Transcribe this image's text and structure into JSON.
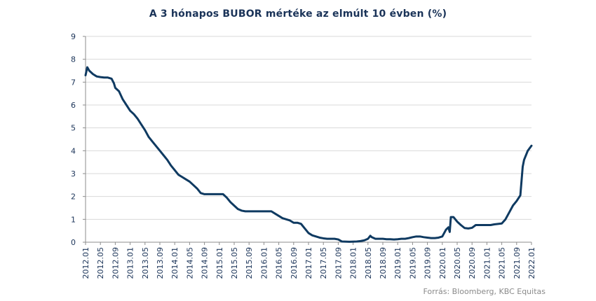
{
  "title": "A 3 hónapos BUBOR mértéke az elmúlt  10 évben (%)",
  "source": "Forrás: Bloomberg,  KBC Equitas",
  "colors": {
    "line": "#0f3a61",
    "grid": "#d9d9d9",
    "axis": "#8c8c8c",
    "text": "#1a3358"
  },
  "chart_data": {
    "type": "line",
    "title": "A 3 hónapos BUBOR mértéke az elmúlt  10 évben (%)",
    "xlabel": "",
    "ylabel": "",
    "ylim": [
      0,
      9
    ],
    "yticks": [
      0,
      1,
      2,
      3,
      4,
      5,
      6,
      7,
      8,
      9
    ],
    "xlim": [
      "2012-01",
      "2022-01"
    ],
    "xticks": [
      "2012.01",
      "2012.05",
      "2012.09",
      "2013.01",
      "2013.05",
      "2013.09",
      "2014.01",
      "2014.05",
      "2014.09",
      "2015.01",
      "2015.05",
      "2015.09",
      "2016.01",
      "2016.05",
      "2016.09",
      "2017.01",
      "2017.05",
      "2017.09",
      "2018.01",
      "2018.05",
      "2018.09",
      "2019.01",
      "2019.05",
      "2019.09",
      "2020.01",
      "2020.05",
      "2020.09",
      "2021.01",
      "2021.05",
      "2021.09",
      "2022.01"
    ],
    "grid": "horizontal",
    "legend": "none",
    "series": [
      {
        "points": [
          [
            "2012-01",
            7.3
          ],
          [
            "2012-01-15",
            7.65
          ],
          [
            "2012-02",
            7.5
          ],
          [
            "2012-03",
            7.35
          ],
          [
            "2012-04",
            7.25
          ],
          [
            "2012-05",
            7.22
          ],
          [
            "2012-06",
            7.2
          ],
          [
            "2012-07",
            7.2
          ],
          [
            "2012-08",
            7.15
          ],
          [
            "2012-08-20",
            6.95
          ],
          [
            "2012-09",
            6.75
          ],
          [
            "2012-10",
            6.6
          ],
          [
            "2012-11",
            6.25
          ],
          [
            "2012-12",
            6.0
          ],
          [
            "2013-01",
            5.75
          ],
          [
            "2013-02",
            5.6
          ],
          [
            "2013-03",
            5.4
          ],
          [
            "2013-04",
            5.15
          ],
          [
            "2013-05",
            4.9
          ],
          [
            "2013-06",
            4.6
          ],
          [
            "2013-07",
            4.4
          ],
          [
            "2013-08",
            4.2
          ],
          [
            "2013-09",
            4.0
          ],
          [
            "2013-10",
            3.8
          ],
          [
            "2013-11",
            3.6
          ],
          [
            "2013-12",
            3.35
          ],
          [
            "2014-01",
            3.15
          ],
          [
            "2014-02",
            2.95
          ],
          [
            "2014-03",
            2.85
          ],
          [
            "2014-04",
            2.75
          ],
          [
            "2014-05",
            2.65
          ],
          [
            "2014-06",
            2.5
          ],
          [
            "2014-07",
            2.35
          ],
          [
            "2014-08",
            2.15
          ],
          [
            "2014-09",
            2.1
          ],
          [
            "2014-10",
            2.1
          ],
          [
            "2014-11",
            2.1
          ],
          [
            "2014-12",
            2.1
          ],
          [
            "2015-01",
            2.1
          ],
          [
            "2015-02",
            2.1
          ],
          [
            "2015-03",
            1.95
          ],
          [
            "2015-04",
            1.75
          ],
          [
            "2015-05",
            1.6
          ],
          [
            "2015-06",
            1.45
          ],
          [
            "2015-07",
            1.38
          ],
          [
            "2015-08",
            1.35
          ],
          [
            "2015-09",
            1.35
          ],
          [
            "2015-12",
            1.35
          ],
          [
            "2016-03",
            1.35
          ],
          [
            "2016-04",
            1.25
          ],
          [
            "2016-05",
            1.15
          ],
          [
            "2016-06",
            1.05
          ],
          [
            "2016-07",
            1.0
          ],
          [
            "2016-08",
            0.95
          ],
          [
            "2016-09",
            0.85
          ],
          [
            "2016-10",
            0.85
          ],
          [
            "2016-11",
            0.8
          ],
          [
            "2016-12",
            0.6
          ],
          [
            "2017-01",
            0.4
          ],
          [
            "2017-02",
            0.3
          ],
          [
            "2017-03",
            0.25
          ],
          [
            "2017-04",
            0.2
          ],
          [
            "2017-05",
            0.17
          ],
          [
            "2017-06",
            0.15
          ],
          [
            "2017-07",
            0.15
          ],
          [
            "2017-08",
            0.15
          ],
          [
            "2017-09",
            0.12
          ],
          [
            "2017-10",
            0.03
          ],
          [
            "2017-12",
            0.02
          ],
          [
            "2018-02",
            0.03
          ],
          [
            "2018-03",
            0.05
          ],
          [
            "2018-04",
            0.08
          ],
          [
            "2018-05",
            0.15
          ],
          [
            "2018-05-20",
            0.28
          ],
          [
            "2018-06",
            0.22
          ],
          [
            "2018-07",
            0.15
          ],
          [
            "2018-08",
            0.15
          ],
          [
            "2018-09",
            0.15
          ],
          [
            "2018-10",
            0.13
          ],
          [
            "2018-11",
            0.13
          ],
          [
            "2018-12",
            0.12
          ],
          [
            "2019-01",
            0.13
          ],
          [
            "2019-02",
            0.15
          ],
          [
            "2019-03",
            0.15
          ],
          [
            "2019-04",
            0.18
          ],
          [
            "2019-05",
            0.22
          ],
          [
            "2019-06",
            0.25
          ],
          [
            "2019-07",
            0.25
          ],
          [
            "2019-08",
            0.22
          ],
          [
            "2019-09",
            0.2
          ],
          [
            "2019-10",
            0.18
          ],
          [
            "2019-11",
            0.18
          ],
          [
            "2019-12",
            0.2
          ],
          [
            "2020-01",
            0.25
          ],
          [
            "2020-02",
            0.55
          ],
          [
            "2020-02-20",
            0.65
          ],
          [
            "2020-03",
            0.45
          ],
          [
            "2020-03-10",
            1.1
          ],
          [
            "2020-04",
            1.1
          ],
          [
            "2020-05",
            0.9
          ],
          [
            "2020-06",
            0.75
          ],
          [
            "2020-07",
            0.62
          ],
          [
            "2020-08",
            0.6
          ],
          [
            "2020-09",
            0.63
          ],
          [
            "2020-10",
            0.75
          ],
          [
            "2020-11",
            0.75
          ],
          [
            "2020-12",
            0.75
          ],
          [
            "2021-01",
            0.75
          ],
          [
            "2021-02",
            0.75
          ],
          [
            "2021-03",
            0.78
          ],
          [
            "2021-04",
            0.8
          ],
          [
            "2021-05",
            0.82
          ],
          [
            "2021-06",
            1.0
          ],
          [
            "2021-07",
            1.3
          ],
          [
            "2021-08",
            1.6
          ],
          [
            "2021-09",
            1.8
          ],
          [
            "2021-10",
            2.05
          ],
          [
            "2021-10-20",
            3.3
          ],
          [
            "2021-11",
            3.6
          ],
          [
            "2021-12",
            4.0
          ],
          [
            "2022-01",
            4.22
          ]
        ]
      }
    ]
  }
}
